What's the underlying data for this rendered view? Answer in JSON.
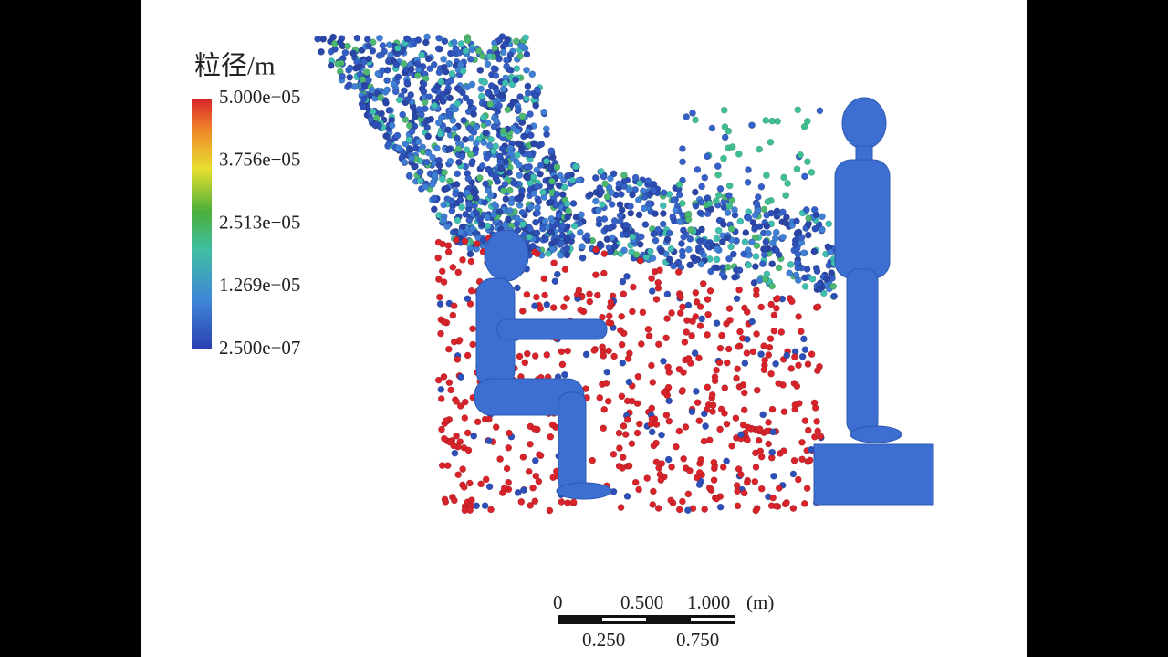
{
  "legend": {
    "title": "粒径/m",
    "labels": [
      "5.000e−05",
      "3.756e−05",
      "2.513e−05",
      "1.269e−05",
      "2.500e−07"
    ]
  },
  "scale_bar": {
    "top_labels": [
      "0",
      "0.500",
      "1.000",
      "(m)"
    ],
    "bottom_labels": [
      "0.250",
      "0.750"
    ]
  }
}
